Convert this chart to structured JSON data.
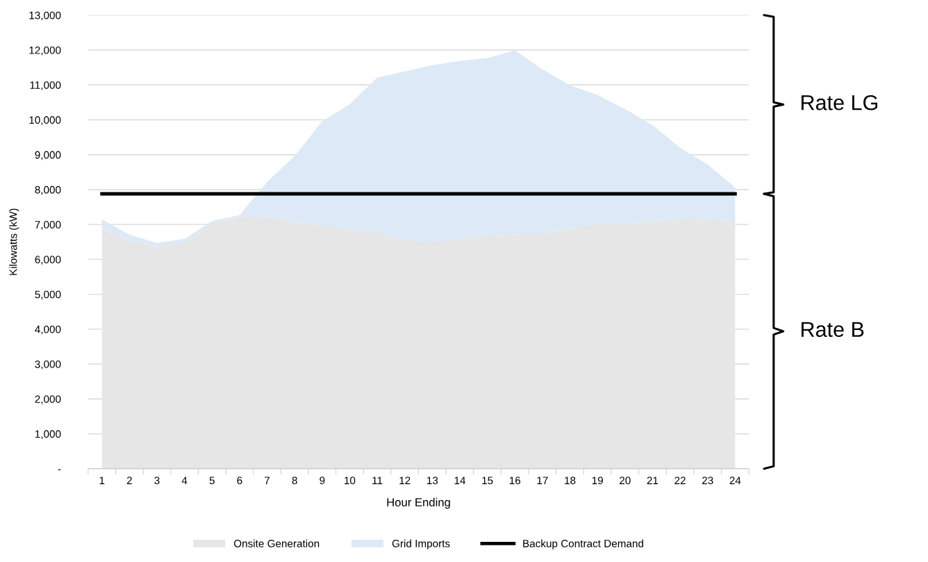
{
  "chart_data": {
    "type": "area",
    "stacked": true,
    "xlabel": "Hour Ending",
    "ylabel": "Kilowatts (kW)",
    "categories": [
      "1",
      "2",
      "3",
      "4",
      "5",
      "6",
      "7",
      "8",
      "9",
      "10",
      "11",
      "12",
      "13",
      "14",
      "15",
      "16",
      "17",
      "18",
      "19",
      "20",
      "21",
      "22",
      "23",
      "24"
    ],
    "series": [
      {
        "name": "Onsite Generation",
        "color": "#e7e6e6",
        "values": [
          6870,
          6540,
          6350,
          6490,
          7030,
          7230,
          7210,
          7070,
          6950,
          6850,
          6750,
          6540,
          6490,
          6590,
          6660,
          6690,
          6720,
          6870,
          7010,
          7010,
          7090,
          7150,
          7130,
          7110
        ]
      },
      {
        "name": "Grid Imports",
        "color": "#dde9f6",
        "values": [
          280,
          170,
          120,
          100,
          70,
          40,
          1010,
          1890,
          3010,
          3600,
          4460,
          4850,
          5080,
          5100,
          5110,
          5300,
          4730,
          4120,
          3700,
          3300,
          2760,
          2050,
          1590,
          950
        ]
      },
      {
        "name": "Backup Contract Demand",
        "type": "line",
        "color": "#000000",
        "values": [
          7880,
          7880,
          7880,
          7880,
          7880,
          7880,
          7880,
          7880,
          7880,
          7880,
          7880,
          7880,
          7880,
          7880,
          7880,
          7880,
          7880,
          7880,
          7880,
          7880,
          7880,
          7880,
          7880,
          7880
        ]
      }
    ],
    "ylim": [
      0,
      13000
    ],
    "yticks": [
      {
        "value": 0,
        "label": "-"
      },
      {
        "value": 1000,
        "label": "1,000"
      },
      {
        "value": 2000,
        "label": "2,000"
      },
      {
        "value": 3000,
        "label": "3,000"
      },
      {
        "value": 4000,
        "label": "4,000"
      },
      {
        "value": 5000,
        "label": "5,000"
      },
      {
        "value": 6000,
        "label": "6,000"
      },
      {
        "value": 7000,
        "label": "7,000"
      },
      {
        "value": 8000,
        "label": "8,000"
      },
      {
        "value": 9000,
        "label": "9,000"
      },
      {
        "value": 10000,
        "label": "10,000"
      },
      {
        "value": 11000,
        "label": "11,000"
      },
      {
        "value": 12000,
        "label": "12,000"
      },
      {
        "value": 13000,
        "label": "13,000"
      }
    ],
    "annotations": [
      "Rate LG",
      "Rate B"
    ],
    "grid": "y",
    "legend": "bottom"
  }
}
